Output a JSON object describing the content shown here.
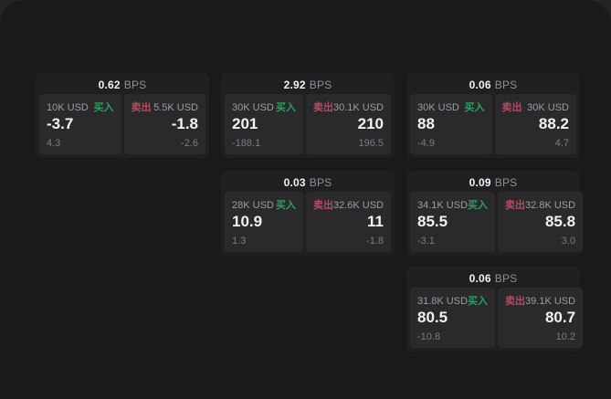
{
  "page": {
    "backdrop_color": "#242427",
    "surface_color": "#1a1a1c"
  },
  "colors": {
    "buy_green": "#2f9e63",
    "sell_red": "#b94a5e",
    "card_bg": "#202023",
    "panel_bg": "#2a2a2d"
  },
  "labels": {
    "bps_unit": "BPS",
    "buy": "买入",
    "sell": "卖出"
  },
  "cards": [
    {
      "bps": "0.62",
      "buy": {
        "size": "10K USD",
        "price": "-3.7",
        "delta": "4.3"
      },
      "sell": {
        "size": "5.5K USD",
        "price": "-1.8",
        "delta": "-2.6"
      }
    },
    {
      "bps": "2.92",
      "buy": {
        "size": "30K USD",
        "price": "201",
        "delta": "-188.1"
      },
      "sell": {
        "size": "30.1K USD",
        "price": "210",
        "delta": "196.5"
      }
    },
    {
      "bps": "0.06",
      "buy": {
        "size": "30K USD",
        "price": "88",
        "delta": "-4.9"
      },
      "sell": {
        "size": "30K USD",
        "price": "88.2",
        "delta": "4.7"
      }
    },
    {
      "bps": "0.03",
      "buy": {
        "size": "28K USD",
        "price": "10.9",
        "delta": "1.3"
      },
      "sell": {
        "size": "32.6K USD",
        "price": "11",
        "delta": "-1.8"
      }
    },
    {
      "bps": "0.09",
      "buy": {
        "size": "34.1K USD",
        "price": "85.5",
        "delta": "-3.1"
      },
      "sell": {
        "size": "32.8K USD",
        "price": "85.8",
        "delta": "3.0"
      }
    },
    {
      "bps": "0.06",
      "buy": {
        "size": "31.8K USD",
        "price": "80.5",
        "delta": "-10.8"
      },
      "sell": {
        "size": "39.1K USD",
        "price": "80.7",
        "delta": "10.2"
      }
    }
  ]
}
